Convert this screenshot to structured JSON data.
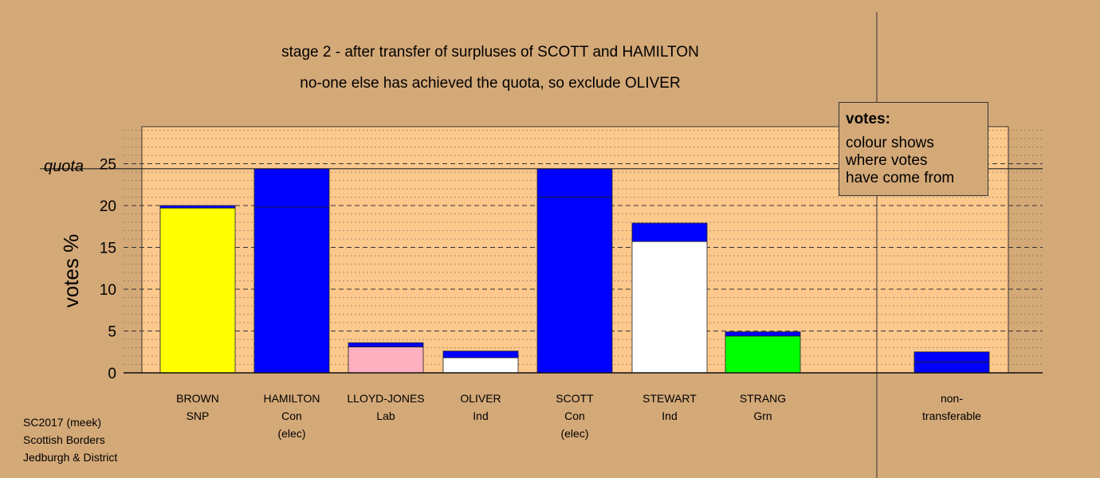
{
  "titles": {
    "line1": "stage 2 - after transfer of surpluses of SCOTT and HAMILTON",
    "line2": "no-one else has achieved the quota, so exclude OLIVER"
  },
  "footer": [
    "SC2017 (meek)",
    "Scottish Borders",
    "Jedburgh & District"
  ],
  "legend": {
    "title": "votes:",
    "lines": [
      "colour shows",
      "where votes",
      "have come from"
    ]
  },
  "colors": {
    "background": "#d4a978",
    "plot_area": "#fcc88c",
    "snp": "#ffff00",
    "con": "#0000ff",
    "lab": "#ffb0c0",
    "ind": "#ffffff",
    "grn": "#00ff00"
  },
  "chart_data": {
    "type": "bar",
    "stacked": true,
    "ylabel": "votes %",
    "ylim": [
      0,
      30
    ],
    "yticks": [
      0,
      5,
      10,
      15,
      20,
      25
    ],
    "quota": 24.4,
    "quota_label": "quota",
    "grid": true,
    "categories": [
      {
        "name": "BROWN",
        "party": "SNP",
        "note": "",
        "segments": [
          {
            "color": "#ffff00",
            "value": 19.7
          },
          {
            "color": "#0000ff",
            "value": 0.3
          }
        ]
      },
      {
        "name": "HAMILTON",
        "party": "Con",
        "note": "(elec)",
        "segments": [
          {
            "color": "#0000ff",
            "value": 19.8
          },
          {
            "color": "#0000ff",
            "value": 4.6
          }
        ]
      },
      {
        "name": "LLOYD-JONES",
        "party": "Lab",
        "note": "",
        "segments": [
          {
            "color": "#ffb0c0",
            "value": 3.1
          },
          {
            "color": "#0000ff",
            "value": 0.5
          }
        ]
      },
      {
        "name": "OLIVER",
        "party": "Ind",
        "note": "",
        "segments": [
          {
            "color": "#ffffff",
            "value": 1.8
          },
          {
            "color": "#0000ff",
            "value": 0.8
          }
        ]
      },
      {
        "name": "SCOTT",
        "party": "Con",
        "note": "(elec)",
        "segments": [
          {
            "color": "#0000ff",
            "value": 21.0
          },
          {
            "color": "#0000ff",
            "value": 3.4
          }
        ]
      },
      {
        "name": "STEWART",
        "party": "Ind",
        "note": "",
        "segments": [
          {
            "color": "#ffffff",
            "value": 15.7
          },
          {
            "color": "#0000ff",
            "value": 2.2
          }
        ]
      },
      {
        "name": "STRANG",
        "party": "Grn",
        "note": "",
        "segments": [
          {
            "color": "#00ff00",
            "value": 4.4
          },
          {
            "color": "#0000ff",
            "value": 0.5
          }
        ]
      },
      {
        "name": "non-",
        "party": "transferable",
        "note": "",
        "segments": [
          {
            "color": "#0000ff",
            "value": 1.3
          },
          {
            "color": "#0000ff",
            "value": 1.2
          }
        ]
      }
    ]
  }
}
